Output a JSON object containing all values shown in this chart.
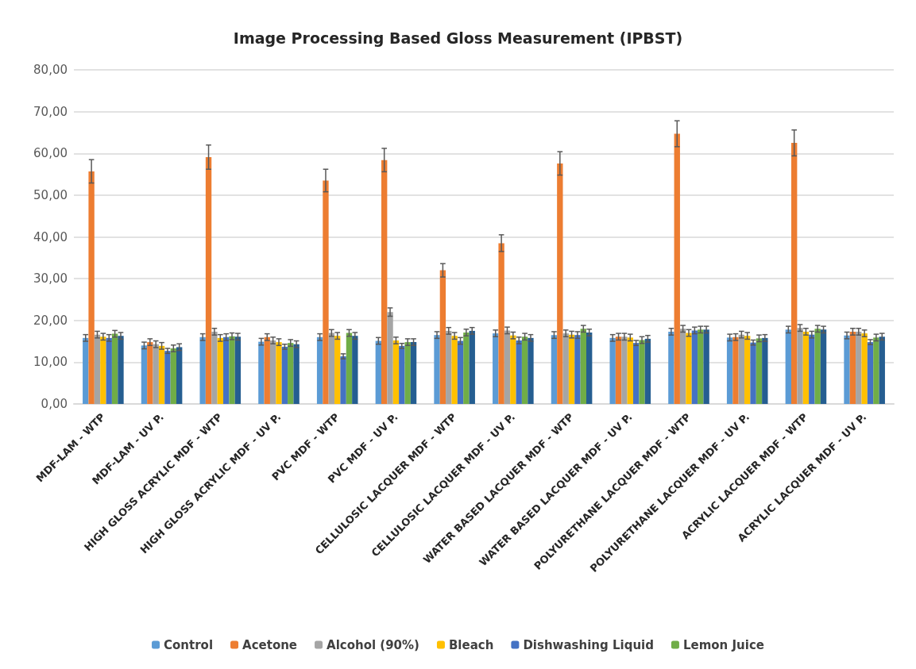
{
  "chart_data": {
    "type": "bar",
    "title": "Image Processing Based Gloss Measurement (IPBST)",
    "categories": [
      "MDF-LAM - WTP",
      "MDF-LAM - UV P.",
      "HIGH GLOSS ACRYLIC MDF - WTP",
      "HIGH GLOSS ACRYLIC MDF - UV P.",
      "PVC MDF - WTP",
      "PVC MDF - UV P.",
      "CELLULOSIC LACQUER MDF - WTP",
      "CELLULOSIC LACQUER MDF - UV P.",
      "WATER BASED LACQUER MDF - WTP",
      "WATER BASED LACQUER MDF - UV P.",
      "POLYURETHANE LACQUER MDF - WTP",
      "POLYURETHANE LACQUER MDF - UV P.",
      "ACRYLIC LACQUER MDF - WTP",
      "ACRYLIC LACQUER MDF - UV P."
    ],
    "series": [
      {
        "name": "Control",
        "color": "#5b9bd5",
        "values": [
          15.8,
          14.0,
          16.0,
          14.9,
          16.0,
          15.1,
          16.5,
          16.9,
          16.5,
          15.8,
          17.3,
          15.9,
          17.8,
          16.4
        ],
        "errors": [
          0.8,
          0.8,
          0.8,
          0.8,
          0.8,
          0.8,
          0.8,
          0.8,
          0.8,
          0.8,
          0.8,
          0.8,
          0.8,
          0.8
        ]
      },
      {
        "name": "Acetone",
        "color": "#ed7d31",
        "values": [
          55.7,
          14.8,
          59.1,
          16.0,
          53.5,
          58.4,
          32.0,
          38.5,
          57.6,
          16.1,
          64.7,
          16.0,
          62.5,
          17.3
        ],
        "errors": [
          2.8,
          0.8,
          2.9,
          0.8,
          2.7,
          2.8,
          1.6,
          2.0,
          2.8,
          0.8,
          3.1,
          0.8,
          3.1,
          0.8
        ]
      },
      {
        "name": "Alcohol (90%)",
        "color": "#a5a5a5",
        "values": [
          16.6,
          14.3,
          17.3,
          15.2,
          17.0,
          22.0,
          17.5,
          17.6,
          16.9,
          16.1,
          18.0,
          16.6,
          18.2,
          17.3
        ],
        "errors": [
          0.8,
          0.8,
          0.8,
          0.8,
          0.8,
          1.0,
          0.8,
          0.8,
          0.8,
          0.8,
          0.8,
          0.8,
          0.8,
          0.8
        ]
      },
      {
        "name": "Bleach",
        "color": "#ffc000",
        "values": [
          16.1,
          13.9,
          15.8,
          14.8,
          16.3,
          15.2,
          16.3,
          16.4,
          16.6,
          15.9,
          17.0,
          16.3,
          17.3,
          16.9
        ],
        "errors": [
          0.8,
          0.8,
          0.8,
          0.8,
          0.8,
          0.8,
          0.8,
          0.8,
          0.8,
          0.8,
          0.8,
          0.8,
          0.8,
          0.8
        ]
      },
      {
        "name": "Dishwashing Liquid",
        "color": "#4472c4",
        "values": [
          15.8,
          12.7,
          16.0,
          13.7,
          11.4,
          13.9,
          15.1,
          15.2,
          16.5,
          14.6,
          17.6,
          14.7,
          16.6,
          14.8
        ],
        "errors": [
          0.8,
          0.6,
          0.8,
          0.6,
          0.6,
          0.6,
          0.8,
          0.8,
          0.8,
          0.6,
          0.8,
          0.6,
          0.8,
          0.6
        ]
      },
      {
        "name": "Lemon Juice",
        "color": "#70ad47",
        "values": [
          16.8,
          13.3,
          16.2,
          14.6,
          17.0,
          14.8,
          17.1,
          16.1,
          18.0,
          15.3,
          17.8,
          15.7,
          18.0,
          15.9
        ],
        "errors": [
          0.8,
          0.8,
          0.8,
          0.8,
          0.8,
          0.8,
          0.8,
          0.8,
          0.8,
          0.8,
          0.8,
          0.8,
          0.8,
          0.8
        ]
      },
      {
        "color": "#255e91",
        "values": [
          16.3,
          13.6,
          16.1,
          14.3,
          16.3,
          14.8,
          17.5,
          15.8,
          17.1,
          15.6,
          17.8,
          15.8,
          17.8,
          16.1
        ],
        "errors": [
          0.8,
          0.8,
          0.8,
          0.8,
          0.8,
          0.8,
          0.8,
          0.8,
          0.8,
          0.8,
          0.8,
          0.8,
          0.8,
          0.8
        ]
      }
    ],
    "ylim": [
      0,
      80
    ],
    "yticks": [
      {
        "value": 0,
        "label": "0,00"
      },
      {
        "value": 10,
        "label": "10,00"
      },
      {
        "value": 20,
        "label": "20,00"
      },
      {
        "value": 30,
        "label": "30,00"
      },
      {
        "value": 40,
        "label": "40,00"
      },
      {
        "value": 50,
        "label": "50,00"
      },
      {
        "value": 60,
        "label": "60,00"
      },
      {
        "value": 70,
        "label": "70,00"
      },
      {
        "value": 80,
        "label": "80,00"
      }
    ],
    "grid": "y",
    "legend": "bottom"
  }
}
